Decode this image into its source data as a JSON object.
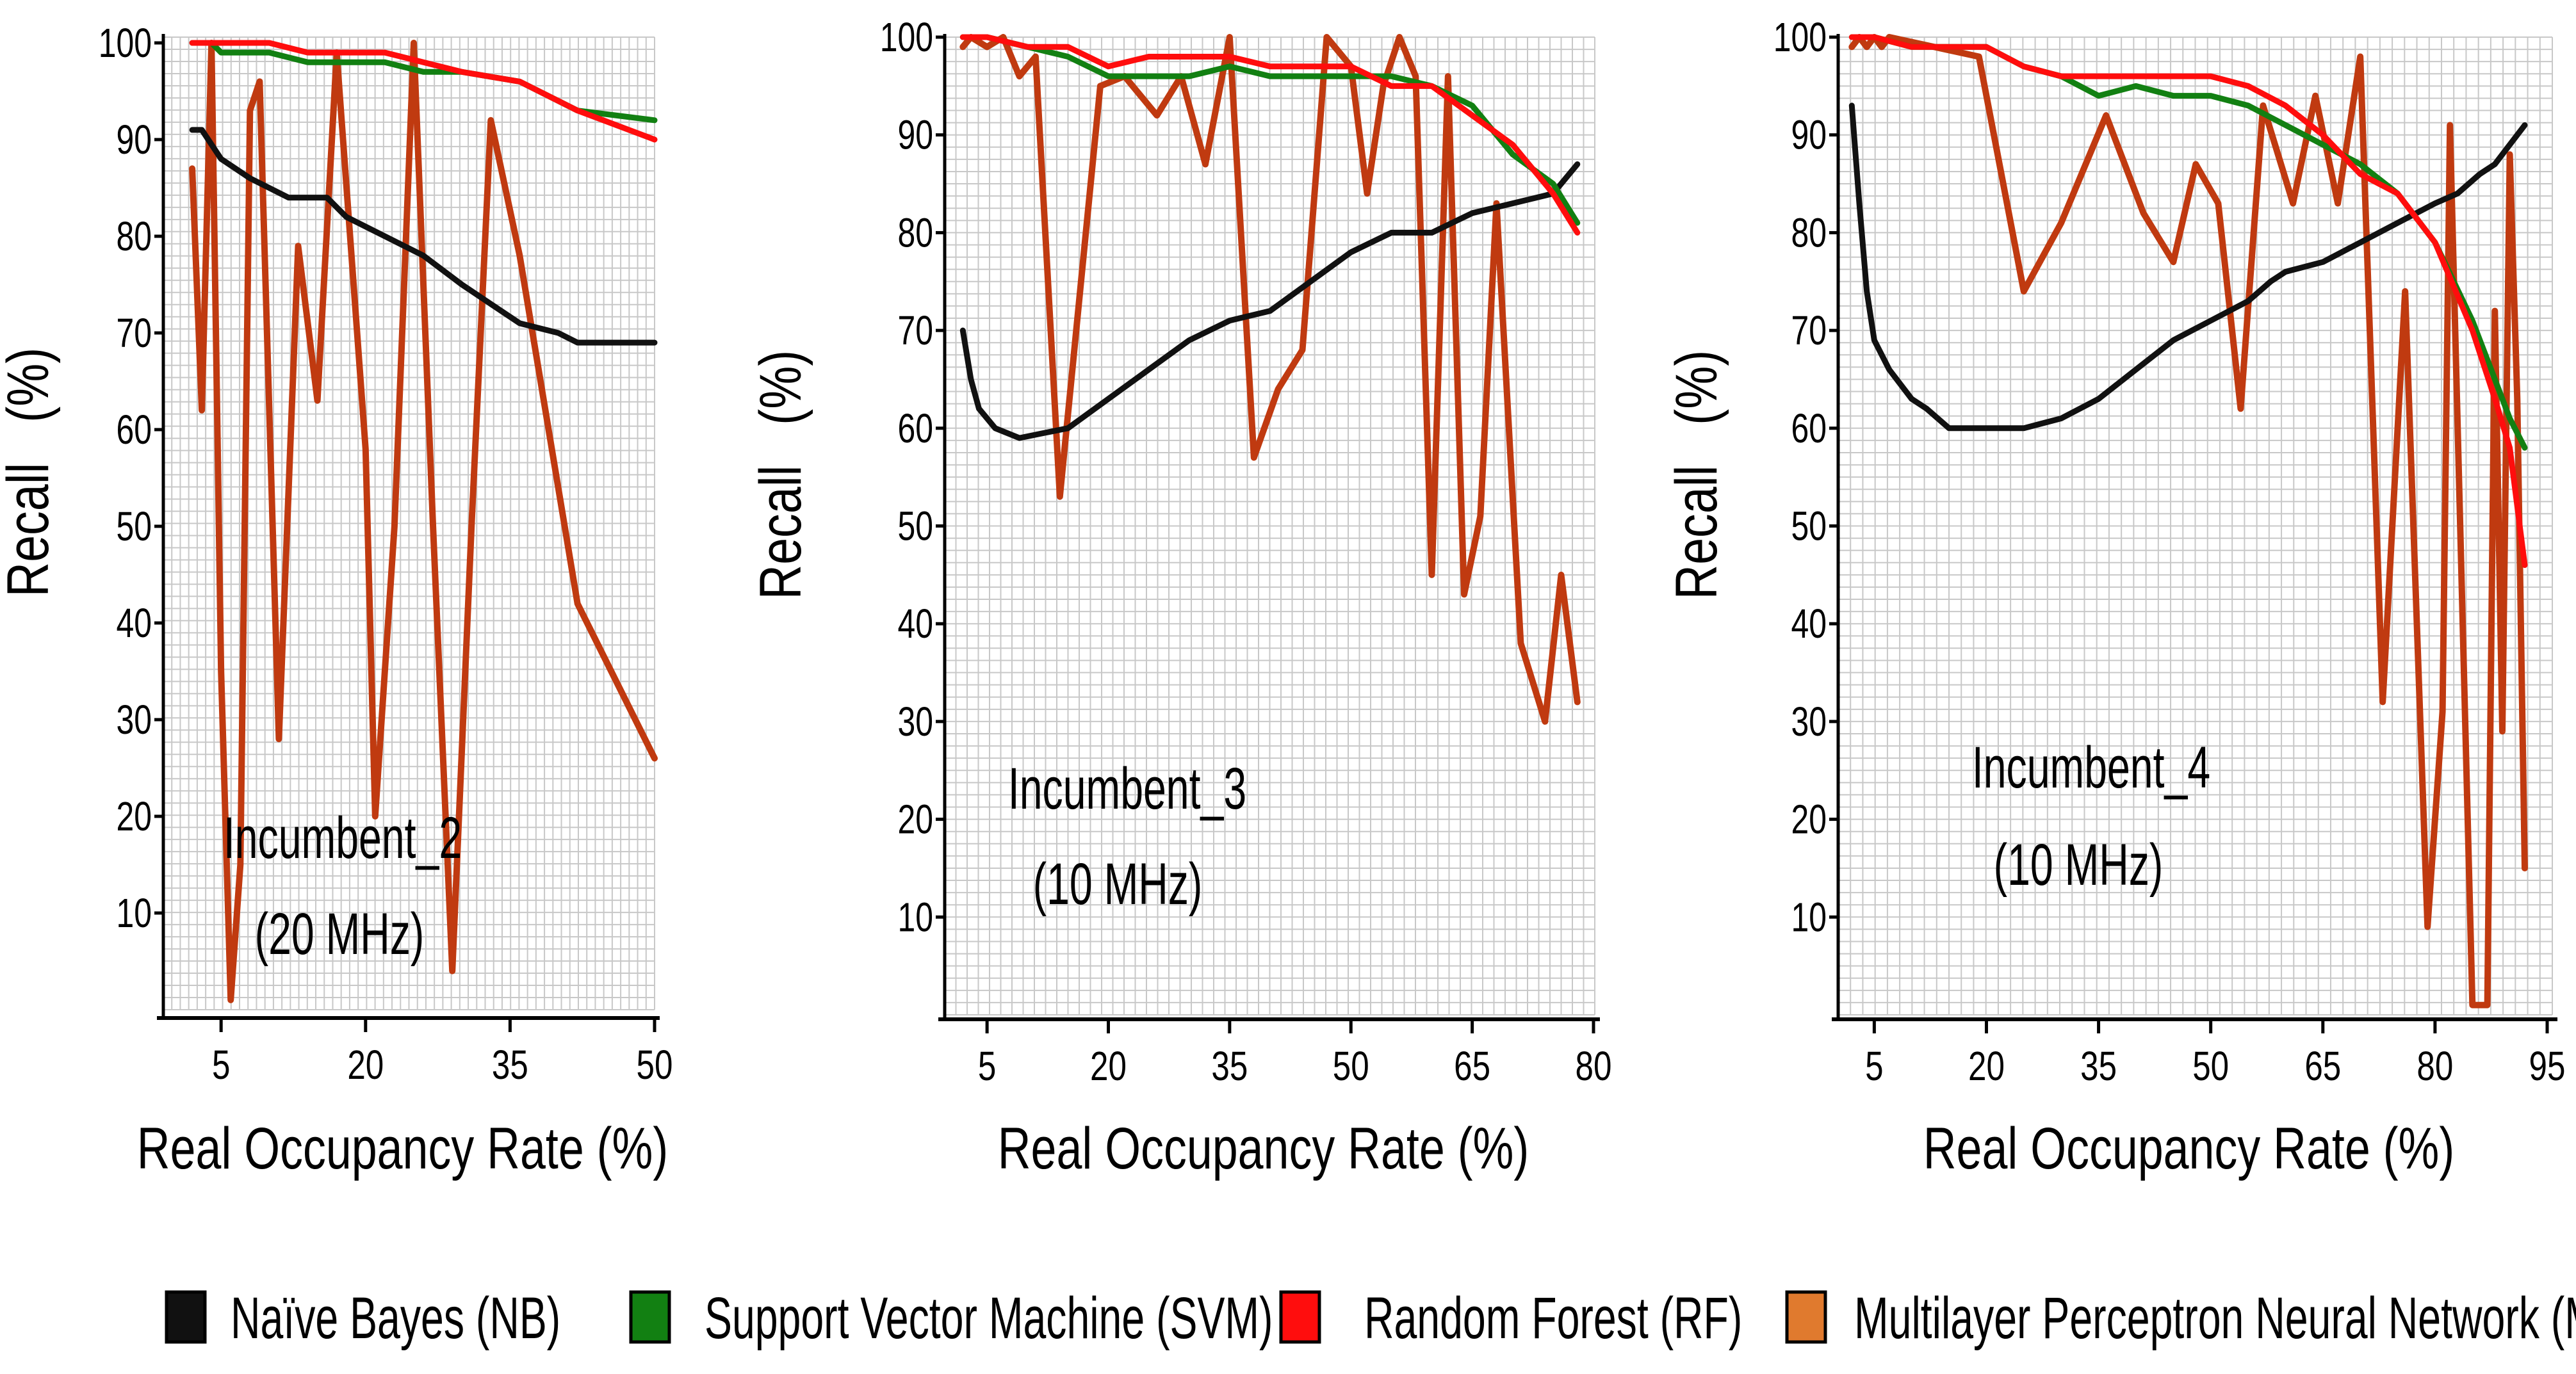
{
  "colors": {
    "nb": "#111111",
    "svm": "#128012",
    "rf": "#ff0d0d",
    "mp": "#c03a10",
    "mp_legend": "#e07a2e",
    "grid": "#c8c8c8",
    "axis": "#000000"
  },
  "legend": [
    {
      "key": "nb",
      "label": "Naïve Bayes (NB)"
    },
    {
      "key": "svm",
      "label": "Support Vector Machine (SVM)"
    },
    {
      "key": "rf",
      "label": "Random Forest (RF)"
    },
    {
      "key": "mp",
      "label": "Multilayer Perceptron Neural Network (MP)"
    }
  ],
  "chart_data": [
    {
      "type": "line",
      "annotation": [
        "Incumbent_2",
        "(20 MHz)"
      ],
      "xlabel": "Real Occupancy Rate (%)",
      "ylabel": "Recall   (%)",
      "xlim": [
        0,
        50
      ],
      "ylim": [
        0,
        100
      ],
      "xticks": [
        5,
        20,
        35,
        50
      ],
      "yticks": [
        10,
        20,
        30,
        40,
        50,
        60,
        70,
        80,
        90,
        100
      ],
      "grid": true,
      "series": [
        {
          "key": "nb",
          "x": [
            2,
            3,
            5,
            8,
            12,
            16,
            18,
            22,
            26,
            30,
            33,
            36,
            40,
            42,
            45,
            50
          ],
          "y": [
            91,
            91,
            88,
            86,
            84,
            84,
            82,
            80,
            78,
            75,
            73,
            71,
            70,
            69,
            69,
            69
          ]
        },
        {
          "key": "svm",
          "x": [
            2,
            4,
            5,
            10,
            14,
            18,
            22,
            26,
            30,
            36,
            42,
            50
          ],
          "y": [
            100,
            100,
            99,
            99,
            98,
            98,
            98,
            97,
            97,
            96,
            93,
            92
          ]
        },
        {
          "key": "rf",
          "x": [
            2,
            5,
            10,
            14,
            18,
            22,
            26,
            30,
            36,
            42,
            50
          ],
          "y": [
            100,
            100,
            100,
            99,
            99,
            99,
            98,
            97,
            96,
            93,
            90
          ]
        },
        {
          "key": "mp",
          "x": [
            2,
            3,
            4,
            5,
            6,
            7,
            8,
            9,
            11,
            13,
            15,
            17,
            20,
            21,
            23,
            25,
            27,
            29,
            31,
            33,
            36,
            42,
            50
          ],
          "y": [
            87,
            62,
            100,
            35,
            1,
            15,
            93,
            96,
            28,
            79,
            63,
            99,
            58,
            20,
            50,
            100,
            50,
            4,
            50,
            92,
            78,
            42,
            26
          ]
        }
      ]
    },
    {
      "type": "line",
      "annotation": [
        "Incumbent_3",
        "(10 MHz)"
      ],
      "xlabel": "Real Occupancy Rate (%)",
      "ylabel": "Recall   (%)",
      "xlim": [
        0,
        80
      ],
      "ylim": [
        0,
        100
      ],
      "xticks": [
        5,
        20,
        35,
        50,
        65,
        80
      ],
      "yticks": [
        10,
        20,
        30,
        40,
        50,
        60,
        70,
        80,
        90,
        100
      ],
      "grid": true,
      "series": [
        {
          "key": "nb",
          "x": [
            2,
            3,
            4,
            6,
            9,
            12,
            15,
            20,
            25,
            30,
            35,
            40,
            45,
            50,
            55,
            60,
            65,
            70,
            75,
            78
          ],
          "y": [
            70,
            65,
            62,
            60,
            59,
            59.5,
            60,
            63,
            66,
            69,
            71,
            72,
            75,
            78,
            80,
            80,
            82,
            83,
            84,
            87
          ]
        },
        {
          "key": "svm",
          "x": [
            2,
            5,
            10,
            15,
            20,
            25,
            30,
            35,
            40,
            45,
            50,
            55,
            60,
            65,
            70,
            75,
            78
          ],
          "y": [
            100,
            100,
            99,
            98,
            96,
            96,
            96,
            97,
            96,
            96,
            96,
            96,
            95,
            93,
            88,
            85,
            81
          ]
        },
        {
          "key": "rf",
          "x": [
            2,
            5,
            10,
            15,
            20,
            25,
            30,
            35,
            40,
            45,
            50,
            55,
            60,
            65,
            70,
            75,
            78
          ],
          "y": [
            100,
            100,
            99,
            99,
            97,
            98,
            98,
            98,
            97,
            97,
            97,
            95,
            95,
            92,
            89,
            84,
            80
          ]
        },
        {
          "key": "mp",
          "x": [
            2,
            3,
            5,
            7,
            9,
            11,
            14,
            19,
            22,
            26,
            29,
            32,
            35,
            38,
            41,
            44,
            47,
            50,
            52,
            54,
            56,
            58,
            60,
            62,
            64,
            66,
            68,
            71,
            74,
            76,
            78
          ],
          "y": [
            99,
            100,
            99,
            100,
            96,
            98,
            53,
            95,
            96,
            92,
            96,
            87,
            100,
            57,
            64,
            68,
            100,
            97,
            84,
            95,
            100,
            96,
            45,
            96,
            43,
            51,
            83,
            38,
            30,
            45,
            32
          ]
        }
      ]
    },
    {
      "type": "line",
      "annotation": [
        "Incumbent_4",
        "(10 MHz)"
      ],
      "xlabel": "Real Occupancy Rate (%)",
      "ylabel": "Recall   (%)",
      "xlim": [
        0,
        95
      ],
      "ylim": [
        0,
        100
      ],
      "xticks": [
        5,
        20,
        35,
        50,
        65,
        80,
        95
      ],
      "yticks": [
        10,
        20,
        30,
        40,
        50,
        60,
        70,
        80,
        90,
        100
      ],
      "grid": true,
      "series": [
        {
          "key": "nb",
          "x": [
            2,
            3,
            4,
            5,
            7,
            10,
            12,
            15,
            20,
            25,
            30,
            35,
            40,
            45,
            50,
            55,
            58,
            60,
            65,
            70,
            75,
            80,
            83,
            86,
            88,
            90,
            92
          ],
          "y": [
            93,
            83,
            74,
            69,
            66,
            63,
            62,
            60,
            60,
            60,
            61,
            63,
            66,
            69,
            71,
            73,
            75,
            76,
            77,
            79,
            81,
            83,
            84,
            86,
            87,
            89,
            91
          ]
        },
        {
          "key": "svm",
          "x": [
            2,
            5,
            10,
            15,
            20,
            25,
            30,
            35,
            40,
            45,
            50,
            55,
            60,
            65,
            70,
            75,
            80,
            85,
            88,
            90,
            92
          ],
          "y": [
            100,
            100,
            99,
            99,
            99,
            97,
            96,
            94,
            95,
            94,
            94,
            93,
            91,
            89,
            87,
            84,
            79,
            71,
            65,
            61,
            58
          ]
        },
        {
          "key": "rf",
          "x": [
            2,
            5,
            10,
            15,
            20,
            25,
            30,
            35,
            40,
            45,
            50,
            55,
            60,
            65,
            70,
            75,
            80,
            85,
            88,
            90,
            92
          ],
          "y": [
            100,
            100,
            99,
            99,
            99,
            97,
            96,
            96,
            96,
            96,
            96,
            95,
            93,
            90,
            86,
            84,
            79,
            70,
            63,
            58,
            46
          ]
        },
        {
          "key": "mp",
          "x": [
            2,
            3,
            4,
            5,
            6,
            7,
            19,
            25,
            30,
            36,
            41,
            45,
            48,
            51,
            54,
            57,
            61,
            64,
            67,
            70,
            73,
            76,
            79,
            81,
            82,
            85,
            86,
            87,
            88,
            89,
            90,
            91,
            92
          ],
          "y": [
            99,
            100,
            99,
            100,
            99,
            100,
            98,
            74,
            81,
            92,
            82,
            77,
            87,
            83,
            62,
            93,
            83,
            94,
            83,
            98,
            32,
            74,
            9,
            31,
            91,
            1,
            1,
            1,
            72,
            29,
            88,
            63,
            15
          ]
        }
      ]
    }
  ]
}
